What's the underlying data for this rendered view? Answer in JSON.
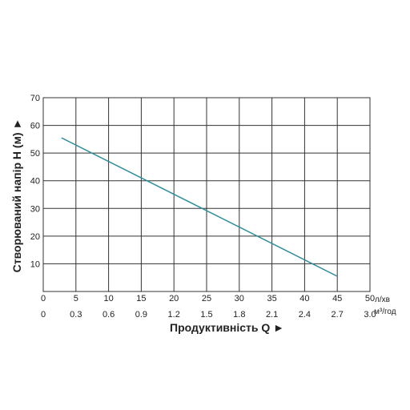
{
  "chart_data": {
    "type": "line",
    "ylabel": "Створюваний напір H (м) ►",
    "xlabel": "Продуктивність  Q  ►",
    "x_unit_primary": "л/хв",
    "x_unit_secondary": "м³/год",
    "ylim": [
      0,
      70
    ],
    "xlim": [
      0,
      50
    ],
    "y_ticks": [
      "10",
      "20",
      "30",
      "40",
      "50",
      "60",
      "70"
    ],
    "x_ticks_primary": [
      "0",
      "5",
      "10",
      "15",
      "20",
      "25",
      "30",
      "35",
      "40",
      "45",
      "50"
    ],
    "x_ticks_secondary": [
      "0",
      "0.3",
      "0.6",
      "0.9",
      "1.2",
      "1.5",
      "1.8",
      "2.1",
      "2.4",
      "2.7",
      "3.0"
    ],
    "grid": true,
    "series": [
      {
        "x": [
          2.8,
          45
        ],
        "y": [
          55.5,
          5.5
        ],
        "color": "#2a8b9a"
      }
    ]
  }
}
